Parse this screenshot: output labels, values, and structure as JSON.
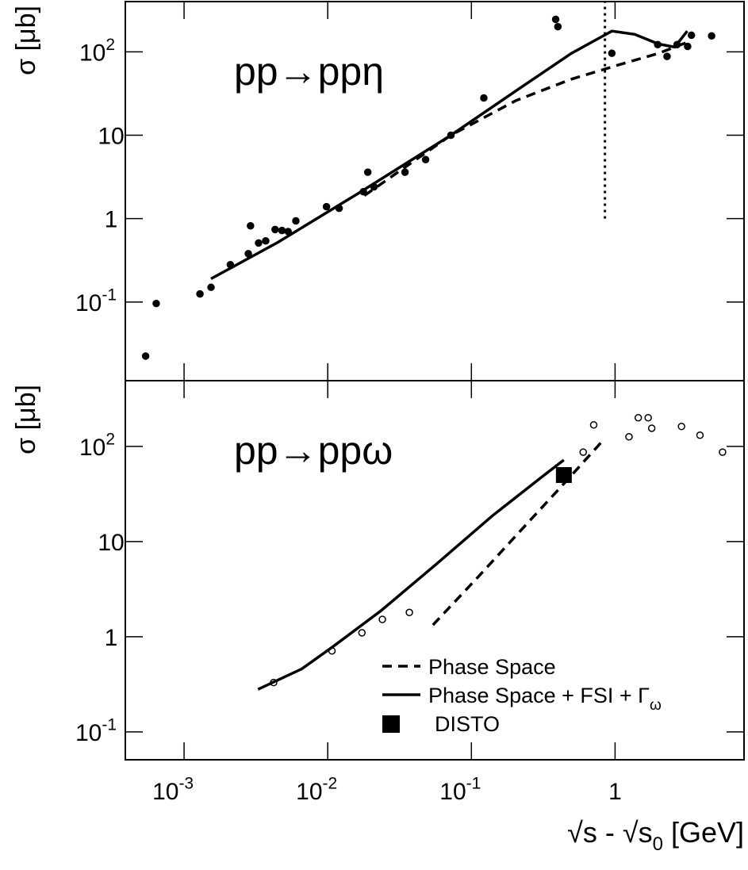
{
  "chart_data": [
    {
      "type": "scatter",
      "title": "pp→ppη",
      "ylabel": "σ [μb]",
      "log_x": true,
      "log_y": true,
      "xlim": [
        0.00039,
        7.9
      ],
      "ylim": [
        0.0114,
        400
      ],
      "yticks": [
        {
          "value": 0.1,
          "label": "10",
          "exponent": "-1"
        },
        1,
        10,
        {
          "value": 100,
          "label": "10",
          "exponent": "2"
        }
      ],
      "series": [
        {
          "style": "dots",
          "color": "#000000",
          "x": [
            0.00054,
            0.00064,
            0.00129,
            0.00154,
            0.0021,
            0.0029,
            0.0028,
            0.0033,
            0.0037,
            0.0043,
            0.0048,
            0.0053,
            0.006,
            0.0098,
            0.012,
            0.0177,
            0.019,
            0.021,
            0.0345,
            0.048,
            0.072,
            0.122,
            0.386,
            0.4,
            0.95,
            1.98,
            2.3,
            2.7,
            3.2,
            3.4,
            4.7
          ],
          "values": [
            0.0225,
            0.096,
            0.125,
            0.15,
            0.28,
            0.82,
            0.38,
            0.51,
            0.54,
            0.74,
            0.72,
            0.7,
            0.94,
            1.39,
            1.33,
            2.1,
            3.6,
            2.4,
            3.6,
            5.1,
            10,
            28,
            245,
            200,
            96,
            122,
            88,
            122,
            116,
            158,
            155
          ]
        },
        {
          "style": "solid",
          "color": "#000000",
          "x": [
            0.00154,
            0.0045,
            0.016,
            0.072,
            0.204,
            0.497,
            0.95,
            1.37,
            2.01,
            2.6,
            3.18
          ],
          "values": [
            0.19,
            0.52,
            1.97,
            10,
            34,
            96,
            177,
            162,
            124,
            114,
            177
          ]
        },
        {
          "style": "dashed",
          "color": "#000000",
          "x": [
            0.018,
            0.072,
            0.204,
            0.497,
            1.07,
            2.01,
            3.18
          ],
          "values": [
            1.89,
            10,
            26,
            47,
            70,
            96,
            130
          ]
        }
      ],
      "vline": {
        "x": 0.85,
        "y": [
          1,
          400
        ]
      }
    },
    {
      "type": "scatter",
      "title": "pp→ppω",
      "ylabel": "σ [μb]",
      "log_x": true,
      "log_y": true,
      "xlim": [
        0.00039,
        7.9
      ],
      "ylim": [
        0.051,
        490
      ],
      "xticks": [
        {
          "value": 0.001,
          "label": "10",
          "exponent": "-3"
        },
        {
          "value": 0.01,
          "label": "10",
          "exponent": "-2"
        },
        {
          "value": 0.1,
          "label": "10",
          "exponent": "-1"
        },
        1
      ],
      "xlabel": [
        "√s - √s",
        "0",
        " [GeV]"
      ],
      "yticks": [
        {
          "value": 0.1,
          "label": "10",
          "exponent": "-1"
        },
        1,
        10,
        {
          "value": 100,
          "label": "10",
          "exponent": "2"
        }
      ],
      "legend": "bottom-right",
      "series": [
        {
          "style": "open",
          "color": "#000000",
          "x": [
            0.0042,
            0.0107,
            0.0173,
            0.024,
            0.037,
            0.6,
            0.71,
            1.25,
            1.45,
            1.7,
            1.8,
            2.9,
            3.9,
            5.6
          ],
          "values": [
            0.33,
            0.71,
            1.1,
            1.52,
            1.8,
            87,
            168,
            126,
            200,
            200,
            155,
            162,
            131,
            87
          ]
        },
        {
          "name": "Phase Space",
          "style": "dashed",
          "color": "#000000",
          "x": [
            0.054,
            0.108,
            0.23,
            0.44,
            0.83
          ],
          "values": [
            1.33,
            4.05,
            14,
            40.5,
            117
          ]
        },
        {
          "name": "Phase Space + FSI + Γ",
          "name_sub": "ω",
          "style": "solid",
          "color": "#000000",
          "x": [
            0.00327,
            0.0066,
            0.0109,
            0.0235,
            0.057,
            0.139,
            0.3,
            0.44
          ],
          "values": [
            0.28,
            0.46,
            0.79,
            1.88,
            5.8,
            18.5,
            46,
            72
          ]
        },
        {
          "name": "DISTO",
          "style": "square",
          "color": "#000000",
          "x": [
            0.44
          ],
          "values": [
            50
          ]
        }
      ]
    }
  ]
}
